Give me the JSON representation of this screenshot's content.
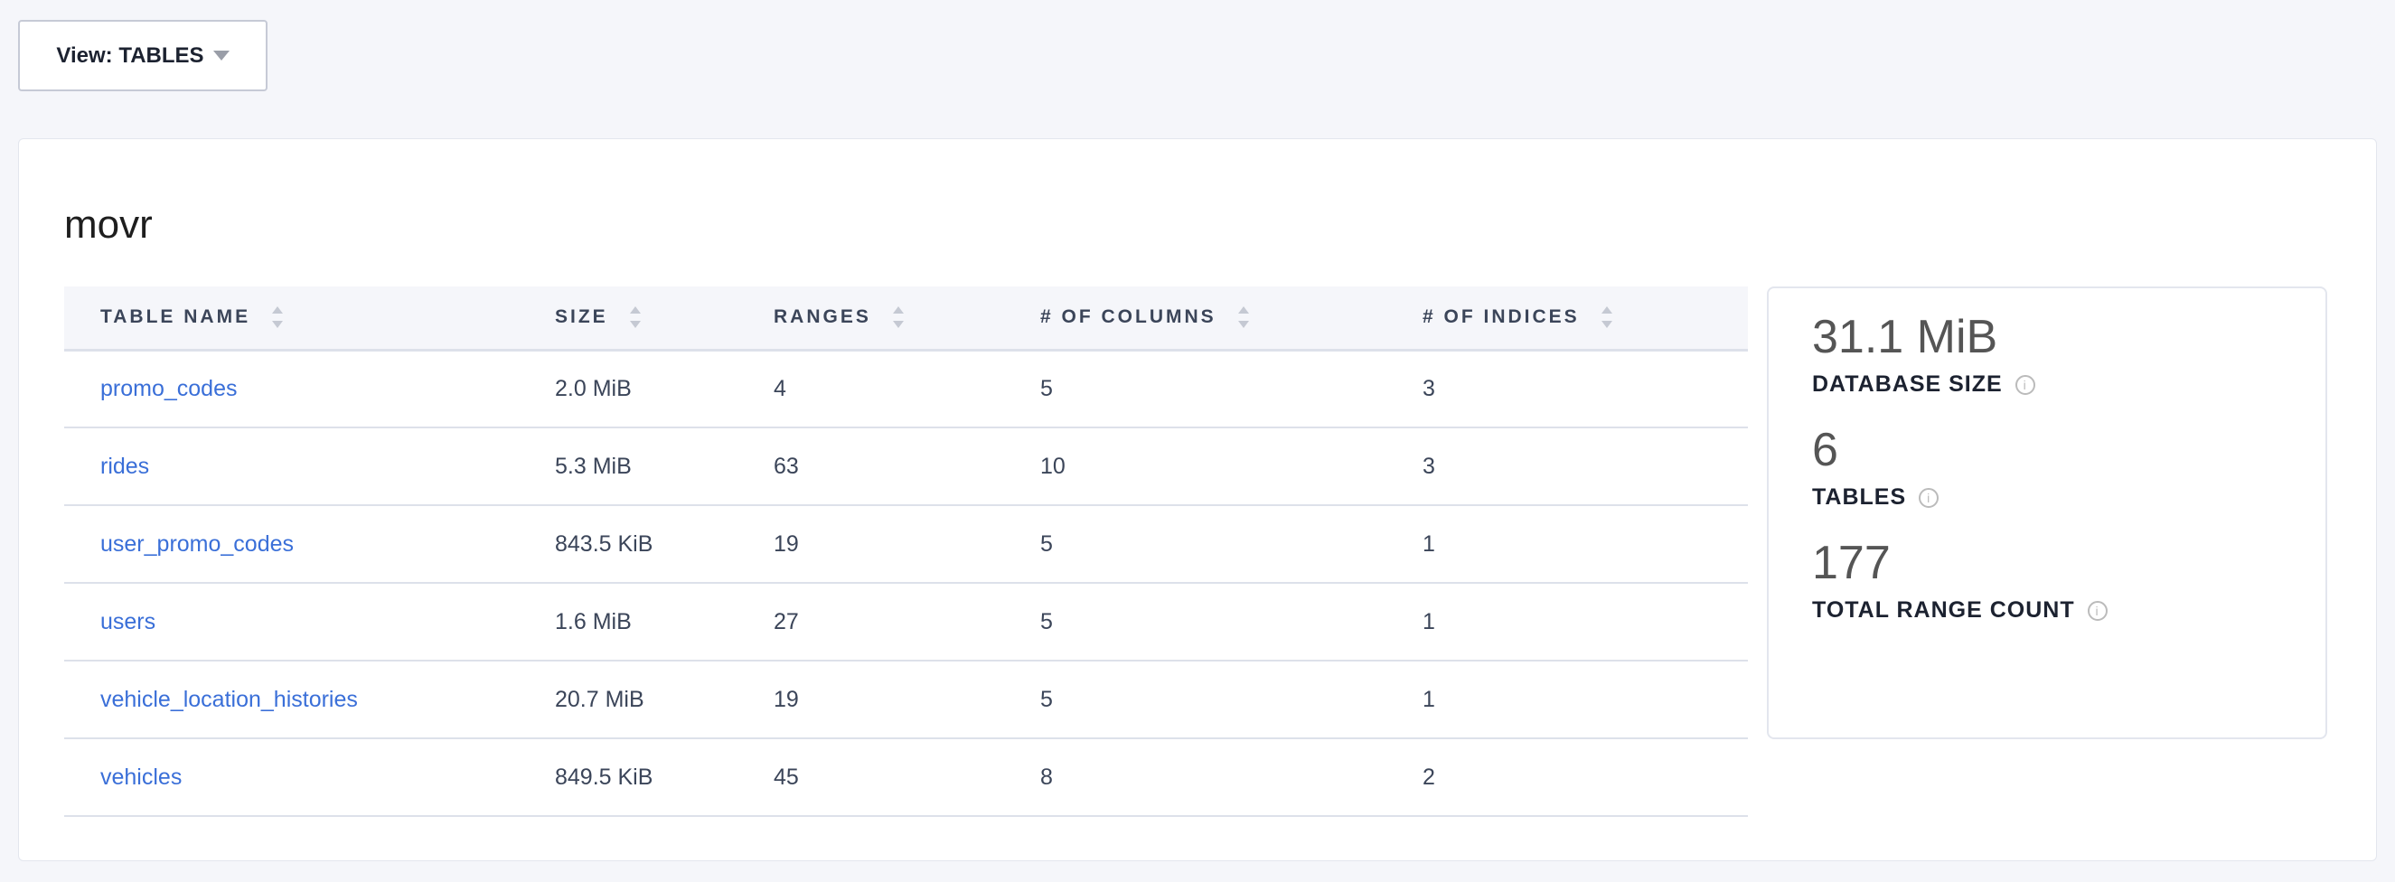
{
  "view_selector": {
    "label": "View: TABLES"
  },
  "database": {
    "name": "movr"
  },
  "table": {
    "headers": [
      "TABLE NAME",
      "SIZE",
      "RANGES",
      "# OF COLUMNS",
      "# OF INDICES"
    ],
    "rows": [
      [
        "promo_codes",
        "2.0 MiB",
        "4",
        "5",
        "3"
      ],
      [
        "rides",
        "5.3 MiB",
        "63",
        "10",
        "3"
      ],
      [
        "user_promo_codes",
        "843.5 KiB",
        "19",
        "5",
        "1"
      ],
      [
        "users",
        "1.6 MiB",
        "27",
        "5",
        "1"
      ],
      [
        "vehicle_location_histories",
        "20.7 MiB",
        "19",
        "5",
        "1"
      ],
      [
        "vehicles",
        "849.5 KiB",
        "45",
        "8",
        "2"
      ]
    ]
  },
  "stats": [
    {
      "value": "31.1 MiB",
      "label": "DATABASE SIZE"
    },
    {
      "value": "6",
      "label": "TABLES"
    },
    {
      "value": "177",
      "label": "TOTAL RANGE COUNT"
    }
  ],
  "info_glyph": "i"
}
